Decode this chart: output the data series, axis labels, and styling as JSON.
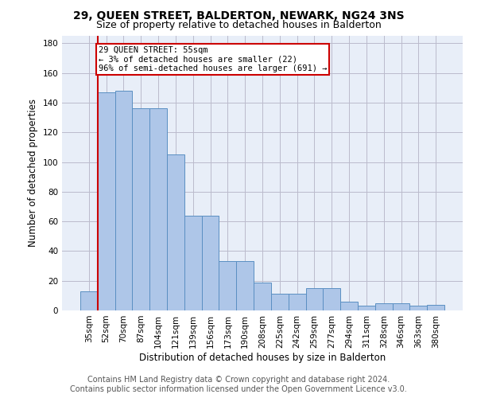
{
  "title": "29, QUEEN STREET, BALDERTON, NEWARK, NG24 3NS",
  "subtitle": "Size of property relative to detached houses in Balderton",
  "xlabel": "Distribution of detached houses by size in Balderton",
  "ylabel": "Number of detached properties",
  "categories": [
    "35sqm",
    "52sqm",
    "70sqm",
    "87sqm",
    "104sqm",
    "121sqm",
    "139sqm",
    "156sqm",
    "173sqm",
    "190sqm",
    "208sqm",
    "225sqm",
    "242sqm",
    "259sqm",
    "277sqm",
    "294sqm",
    "311sqm",
    "328sqm",
    "346sqm",
    "363sqm",
    "380sqm"
  ],
  "values": [
    13,
    147,
    148,
    136,
    136,
    105,
    64,
    64,
    33,
    33,
    19,
    11,
    11,
    15,
    15,
    6,
    3,
    5,
    5,
    3,
    4
  ],
  "bar_color": "#aec6e8",
  "bar_edge_color": "#5a8fc2",
  "annotation_box_text": "29 QUEEN STREET: 55sqm\n← 3% of detached houses are smaller (22)\n96% of semi-detached houses are larger (691) →",
  "annotation_box_color": "#ffffff",
  "annotation_box_edge_color": "#cc0000",
  "annotation_line_color": "#cc0000",
  "ylim": [
    0,
    185
  ],
  "yticks": [
    0,
    20,
    40,
    60,
    80,
    100,
    120,
    140,
    160,
    180
  ],
  "background_color": "#e8eef8",
  "grid_color": "#bbbbcc",
  "footer_line1": "Contains HM Land Registry data © Crown copyright and database right 2024.",
  "footer_line2": "Contains public sector information licensed under the Open Government Licence v3.0.",
  "title_fontsize": 10,
  "subtitle_fontsize": 9,
  "axis_label_fontsize": 8.5,
  "tick_fontsize": 7.5,
  "footer_fontsize": 7
}
